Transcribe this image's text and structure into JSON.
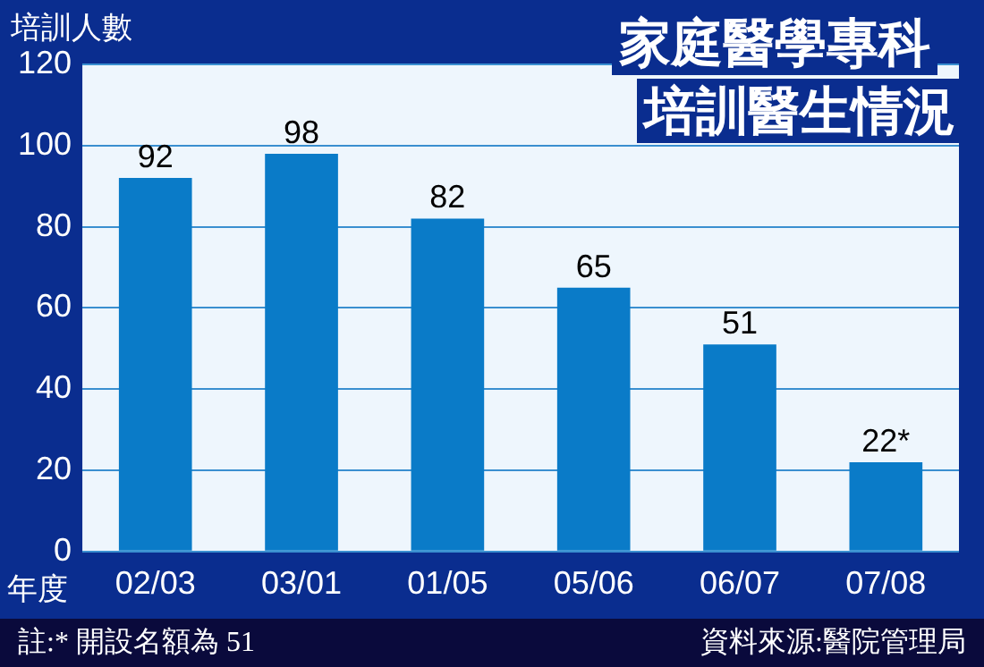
{
  "chart_data": {
    "type": "bar",
    "title": "家庭醫學專科",
    "subtitle": "培訓醫生情況",
    "ylabel": "培訓人數",
    "xlabel": "年度",
    "categories": [
      "02/03",
      "03/01",
      "01/05",
      "05/06",
      "06/07",
      "07/08"
    ],
    "values": [
      92,
      98,
      82,
      65,
      51,
      22
    ],
    "value_labels": [
      "92",
      "98",
      "82",
      "65",
      "51",
      "22*"
    ],
    "color": "#0a7bc8",
    "ylim": [
      0,
      120
    ],
    "yticks": [
      0,
      20,
      40,
      60,
      80,
      100,
      120
    ],
    "grid": "y",
    "legend": false,
    "annotations": [
      "註:* 開設名額為 51",
      "資料來源:醫院管理局"
    ]
  }
}
